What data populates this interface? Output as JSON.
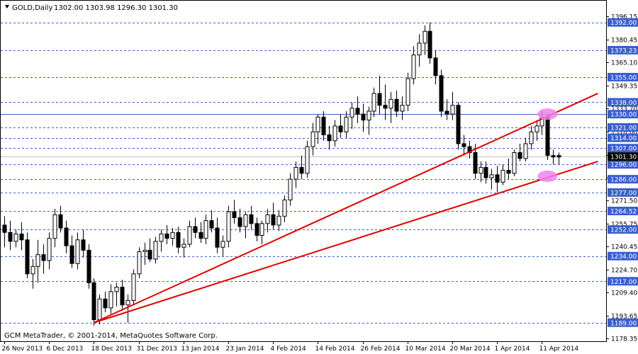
{
  "chart_data": {
    "type": "candlestick",
    "header": {
      "symbol": "GOLD,Daily",
      "ohlc": "1302.00 1303.98 1296.30 1301.30"
    },
    "footer_text": "GCM MetaTrader, © 2001-2014, MetaQuotes Software Corp.",
    "ylim": [
      1178.35,
      1399.5
    ],
    "y_ticks": [
      "1396.15",
      "1380.45",
      "1365.10",
      "1349.35",
      "1333.70",
      "1318.00",
      "1302.30",
      "1287.05",
      "1271.50",
      "1255.75",
      "1240.45",
      "1224.70",
      "1209.40",
      "1193.65",
      "1178.35"
    ],
    "x_ticks": [
      {
        "label": "26 Nov 2013",
        "i": 0
      },
      {
        "label": "6 Dec 2013",
        "i": 8
      },
      {
        "label": "18 Dec 2013",
        "i": 16
      },
      {
        "label": "31 Dec 2013",
        "i": 24
      },
      {
        "label": "13 Jan 2014",
        "i": 32
      },
      {
        "label": "23 Jan 2014",
        "i": 40
      },
      {
        "label": "4 Feb 2014",
        "i": 48
      },
      {
        "label": "14 Feb 2014",
        "i": 56
      },
      {
        "label": "26 Feb 2014",
        "i": 64
      },
      {
        "label": "10 Mar 2014",
        "i": 72
      },
      {
        "label": "20 Mar 2014",
        "i": 80
      },
      {
        "label": "1 Apr 2014",
        "i": 88
      },
      {
        "label": "11 Apr 2014",
        "i": 96
      }
    ],
    "levels": [
      {
        "value": 1392.0,
        "label": "1392.00",
        "color": "#3a5fcd"
      },
      {
        "value": 1373.23,
        "label": "1373.23",
        "color": "#3a5fcd"
      },
      {
        "value": 1355.0,
        "label": "1355.00",
        "color": "#3a5fcd"
      },
      {
        "value": 1338.0,
        "label": "1338.00",
        "color": "#3a5fcd"
      },
      {
        "value": 1330.0,
        "label": "1330.00",
        "color": "#3a5fcd"
      },
      {
        "value": 1321.0,
        "label": "1321.00",
        "color": "#3a5fcd"
      },
      {
        "value": 1314.0,
        "label": "1314.00",
        "color": "#3a5fcd"
      },
      {
        "value": 1307.0,
        "label": "1307.00",
        "color": "#3a5fcd"
      },
      {
        "value": 1296.0,
        "label": "1296.00",
        "color": "#3a5fcd"
      },
      {
        "value": 1286.0,
        "label": "1286.00",
        "color": "#3a5fcd"
      },
      {
        "value": 1277.0,
        "label": "1277.00",
        "color": "#3a5fcd"
      },
      {
        "value": 1264.52,
        "label": "1264.52",
        "color": "#3a5fcd"
      },
      {
        "value": 1252.0,
        "label": "1252.00",
        "color": "#3a5fcd"
      },
      {
        "value": 1234.0,
        "label": "1234.00",
        "color": "#3a5fcd"
      },
      {
        "value": 1217.0,
        "label": "1217.00",
        "color": "#3a5fcd"
      },
      {
        "value": 1189.0,
        "label": "1189.00",
        "color": "#3a5fcd"
      }
    ],
    "current_price": {
      "value": 1301.3,
      "label": "1301.30"
    },
    "trendlines": [
      {
        "from": {
          "i": 16,
          "price": 1189
        },
        "to": {
          "i": 106,
          "price": 1344
        },
        "color": "#e00000"
      },
      {
        "from": {
          "i": 16,
          "price": 1189
        },
        "to": {
          "i": 106,
          "price": 1298
        },
        "color": "#e00000"
      }
    ],
    "highlights": [
      {
        "i": 97,
        "price": 1330,
        "color": "#ee82ee"
      },
      {
        "i": 97,
        "price": 1288,
        "color": "#ee82ee"
      }
    ],
    "series": [
      {
        "o": 1255,
        "h": 1261,
        "l": 1240,
        "c": 1250
      },
      {
        "o": 1250,
        "h": 1258,
        "l": 1238,
        "c": 1244
      },
      {
        "o": 1244,
        "h": 1252,
        "l": 1240,
        "c": 1249
      },
      {
        "o": 1249,
        "h": 1257,
        "l": 1238,
        "c": 1245
      },
      {
        "o": 1245,
        "h": 1250,
        "l": 1219,
        "c": 1222
      },
      {
        "o": 1222,
        "h": 1232,
        "l": 1212,
        "c": 1227
      },
      {
        "o": 1227,
        "h": 1245,
        "l": 1216,
        "c": 1235
      },
      {
        "o": 1235,
        "h": 1242,
        "l": 1222,
        "c": 1231
      },
      {
        "o": 1231,
        "h": 1250,
        "l": 1225,
        "c": 1246
      },
      {
        "o": 1246,
        "h": 1266,
        "l": 1240,
        "c": 1262
      },
      {
        "o": 1262,
        "h": 1268,
        "l": 1250,
        "c": 1253
      },
      {
        "o": 1253,
        "h": 1258,
        "l": 1236,
        "c": 1241
      },
      {
        "o": 1241,
        "h": 1248,
        "l": 1226,
        "c": 1229
      },
      {
        "o": 1229,
        "h": 1250,
        "l": 1225,
        "c": 1245
      },
      {
        "o": 1245,
        "h": 1252,
        "l": 1233,
        "c": 1238
      },
      {
        "o": 1238,
        "h": 1242,
        "l": 1212,
        "c": 1216
      },
      {
        "o": 1216,
        "h": 1219,
        "l": 1187,
        "c": 1191
      },
      {
        "o": 1191,
        "h": 1208,
        "l": 1188,
        "c": 1205
      },
      {
        "o": 1205,
        "h": 1210,
        "l": 1196,
        "c": 1199
      },
      {
        "o": 1199,
        "h": 1215,
        "l": 1195,
        "c": 1210
      },
      {
        "o": 1210,
        "h": 1216,
        "l": 1200,
        "c": 1213
      },
      {
        "o": 1213,
        "h": 1218,
        "l": 1197,
        "c": 1201
      },
      {
        "o": 1201,
        "h": 1208,
        "l": 1189,
        "c": 1204
      },
      {
        "o": 1204,
        "h": 1225,
        "l": 1201,
        "c": 1222
      },
      {
        "o": 1222,
        "h": 1240,
        "l": 1219,
        "c": 1237
      },
      {
        "o": 1237,
        "h": 1243,
        "l": 1228,
        "c": 1238
      },
      {
        "o": 1238,
        "h": 1246,
        "l": 1230,
        "c": 1232
      },
      {
        "o": 1232,
        "h": 1247,
        "l": 1229,
        "c": 1244
      },
      {
        "o": 1244,
        "h": 1252,
        "l": 1237,
        "c": 1249
      },
      {
        "o": 1249,
        "h": 1255,
        "l": 1242,
        "c": 1246
      },
      {
        "o": 1246,
        "h": 1253,
        "l": 1241,
        "c": 1250
      },
      {
        "o": 1250,
        "h": 1254,
        "l": 1236,
        "c": 1240
      },
      {
        "o": 1240,
        "h": 1246,
        "l": 1233,
        "c": 1242
      },
      {
        "o": 1242,
        "h": 1258,
        "l": 1240,
        "c": 1254
      },
      {
        "o": 1254,
        "h": 1260,
        "l": 1246,
        "c": 1250
      },
      {
        "o": 1250,
        "h": 1257,
        "l": 1243,
        "c": 1246
      },
      {
        "o": 1246,
        "h": 1262,
        "l": 1242,
        "c": 1258
      },
      {
        "o": 1258,
        "h": 1265,
        "l": 1250,
        "c": 1253
      },
      {
        "o": 1253,
        "h": 1260,
        "l": 1236,
        "c": 1240
      },
      {
        "o": 1240,
        "h": 1248,
        "l": 1234,
        "c": 1244
      },
      {
        "o": 1244,
        "h": 1268,
        "l": 1240,
        "c": 1264
      },
      {
        "o": 1264,
        "h": 1272,
        "l": 1256,
        "c": 1260
      },
      {
        "o": 1260,
        "h": 1266,
        "l": 1250,
        "c": 1254
      },
      {
        "o": 1254,
        "h": 1264,
        "l": 1246,
        "c": 1262
      },
      {
        "o": 1262,
        "h": 1268,
        "l": 1252,
        "c": 1256
      },
      {
        "o": 1256,
        "h": 1260,
        "l": 1244,
        "c": 1248
      },
      {
        "o": 1248,
        "h": 1258,
        "l": 1242,
        "c": 1256
      },
      {
        "o": 1256,
        "h": 1266,
        "l": 1250,
        "c": 1262
      },
      {
        "o": 1262,
        "h": 1270,
        "l": 1252,
        "c": 1255
      },
      {
        "o": 1255,
        "h": 1265,
        "l": 1251,
        "c": 1261
      },
      {
        "o": 1261,
        "h": 1275,
        "l": 1257,
        "c": 1272
      },
      {
        "o": 1272,
        "h": 1290,
        "l": 1268,
        "c": 1286
      },
      {
        "o": 1286,
        "h": 1298,
        "l": 1280,
        "c": 1294
      },
      {
        "o": 1294,
        "h": 1302,
        "l": 1286,
        "c": 1290
      },
      {
        "o": 1290,
        "h": 1312,
        "l": 1287,
        "c": 1308
      },
      {
        "o": 1308,
        "h": 1324,
        "l": 1302,
        "c": 1318
      },
      {
        "o": 1318,
        "h": 1330,
        "l": 1310,
        "c": 1328
      },
      {
        "o": 1328,
        "h": 1332,
        "l": 1312,
        "c": 1316
      },
      {
        "o": 1316,
        "h": 1322,
        "l": 1306,
        "c": 1312
      },
      {
        "o": 1312,
        "h": 1326,
        "l": 1308,
        "c": 1322
      },
      {
        "o": 1322,
        "h": 1330,
        "l": 1314,
        "c": 1318
      },
      {
        "o": 1318,
        "h": 1332,
        "l": 1314,
        "c": 1328
      },
      {
        "o": 1328,
        "h": 1338,
        "l": 1320,
        "c": 1334
      },
      {
        "o": 1334,
        "h": 1342,
        "l": 1324,
        "c": 1330
      },
      {
        "o": 1330,
        "h": 1337,
        "l": 1318,
        "c": 1326
      },
      {
        "o": 1326,
        "h": 1335,
        "l": 1316,
        "c": 1332
      },
      {
        "o": 1332,
        "h": 1348,
        "l": 1328,
        "c": 1344
      },
      {
        "o": 1344,
        "h": 1356,
        "l": 1330,
        "c": 1336
      },
      {
        "o": 1336,
        "h": 1350,
        "l": 1326,
        "c": 1334
      },
      {
        "o": 1334,
        "h": 1345,
        "l": 1324,
        "c": 1340
      },
      {
        "o": 1340,
        "h": 1346,
        "l": 1328,
        "c": 1332
      },
      {
        "o": 1332,
        "h": 1342,
        "l": 1326,
        "c": 1336
      },
      {
        "o": 1336,
        "h": 1358,
        "l": 1332,
        "c": 1354
      },
      {
        "o": 1354,
        "h": 1376,
        "l": 1350,
        "c": 1370
      },
      {
        "o": 1370,
        "h": 1384,
        "l": 1362,
        "c": 1378
      },
      {
        "o": 1378,
        "h": 1390,
        "l": 1370,
        "c": 1386
      },
      {
        "o": 1386,
        "h": 1392,
        "l": 1364,
        "c": 1368
      },
      {
        "o": 1368,
        "h": 1373,
        "l": 1350,
        "c": 1356
      },
      {
        "o": 1356,
        "h": 1360,
        "l": 1328,
        "c": 1332
      },
      {
        "o": 1332,
        "h": 1340,
        "l": 1326,
        "c": 1330
      },
      {
        "o": 1330,
        "h": 1345,
        "l": 1326,
        "c": 1336
      },
      {
        "o": 1336,
        "h": 1338,
        "l": 1306,
        "c": 1310
      },
      {
        "o": 1310,
        "h": 1316,
        "l": 1302,
        "c": 1308
      },
      {
        "o": 1308,
        "h": 1312,
        "l": 1300,
        "c": 1304
      },
      {
        "o": 1304,
        "h": 1310,
        "l": 1286,
        "c": 1290
      },
      {
        "o": 1290,
        "h": 1298,
        "l": 1284,
        "c": 1294
      },
      {
        "o": 1294,
        "h": 1298,
        "l": 1283,
        "c": 1287
      },
      {
        "o": 1287,
        "h": 1293,
        "l": 1279,
        "c": 1289
      },
      {
        "o": 1289,
        "h": 1295,
        "l": 1277,
        "c": 1284
      },
      {
        "o": 1284,
        "h": 1296,
        "l": 1282,
        "c": 1292
      },
      {
        "o": 1292,
        "h": 1300,
        "l": 1286,
        "c": 1290
      },
      {
        "o": 1290,
        "h": 1306,
        "l": 1288,
        "c": 1304
      },
      {
        "o": 1304,
        "h": 1310,
        "l": 1298,
        "c": 1300
      },
      {
        "o": 1300,
        "h": 1314,
        "l": 1298,
        "c": 1310
      },
      {
        "o": 1310,
        "h": 1322,
        "l": 1306,
        "c": 1318
      },
      {
        "o": 1318,
        "h": 1326,
        "l": 1312,
        "c": 1322
      },
      {
        "o": 1322,
        "h": 1332,
        "l": 1316,
        "c": 1328
      },
      {
        "o": 1328,
        "h": 1330,
        "l": 1299,
        "c": 1302
      },
      {
        "o": 1302,
        "h": 1306,
        "l": 1296,
        "c": 1301
      },
      {
        "o": 1302,
        "h": 1304,
        "l": 1296,
        "c": 1301
      }
    ]
  }
}
